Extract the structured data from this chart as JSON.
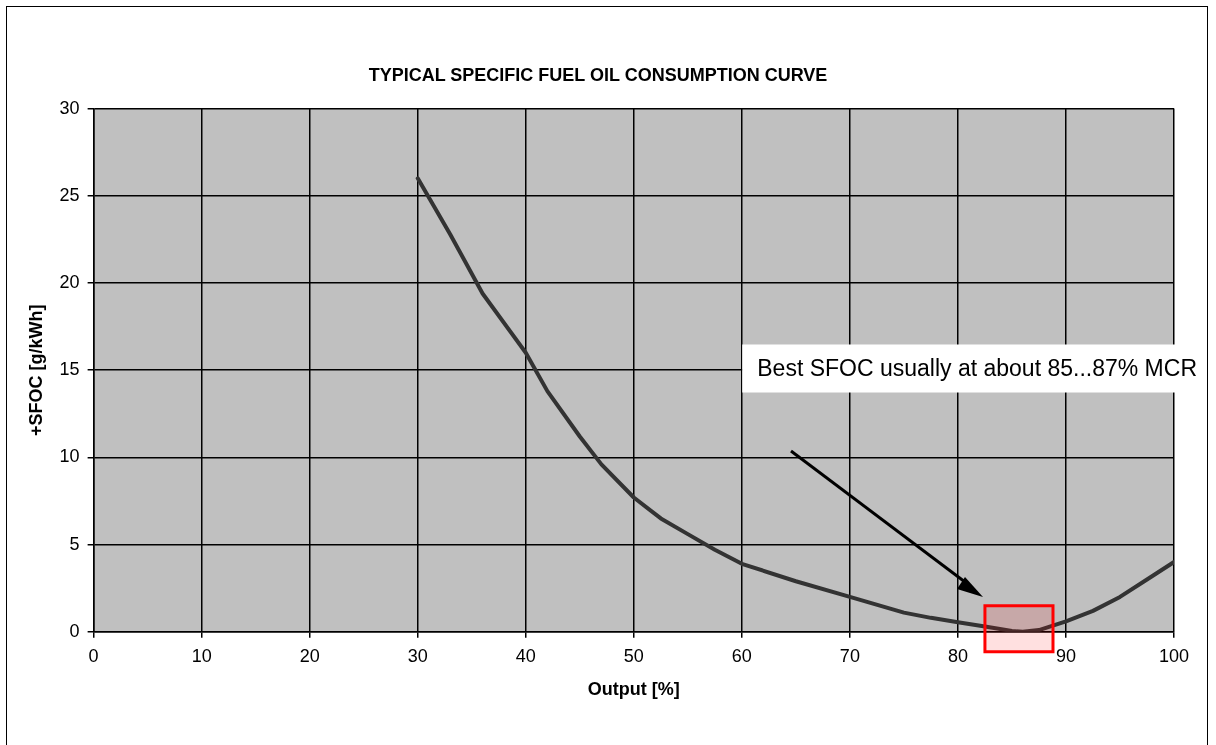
{
  "chart_data": {
    "type": "line",
    "title": "TYPICAL SPECIFIC FUEL OIL CONSUMPTION CURVE",
    "xlabel": "Output [%]",
    "ylabel": "+SFOC [g/kWh]",
    "x": [
      30,
      33,
      36,
      40,
      42,
      45,
      47,
      50,
      52.5,
      55,
      57.5,
      60,
      65,
      70,
      75,
      77.5,
      80,
      82.5,
      85,
      86,
      87.5,
      90,
      92.5,
      95,
      97.5,
      100
    ],
    "series": [
      {
        "color": "#333333",
        "values": [
          26,
          22.8,
          19.4,
          16,
          13.8,
          11.2,
          9.6,
          7.7,
          6.5,
          5.6,
          4.7,
          3.9,
          2.9,
          2.0,
          1.1,
          0.8,
          0.55,
          0.3,
          0.05,
          0,
          0.1,
          0.6,
          1.2,
          2.0,
          3.0,
          4.0
        ]
      }
    ],
    "xlim": [
      0,
      100
    ],
    "xticks": [
      0,
      10,
      20,
      30,
      40,
      50,
      60,
      70,
      80,
      90,
      100
    ],
    "ylim": [
      0,
      30
    ],
    "yticks": [
      0,
      5,
      10,
      15,
      20,
      25,
      30
    ],
    "bands": [
      {
        "axis": "x",
        "from": 82.5,
        "to": 88.8,
        "color": "#ff0000"
      }
    ],
    "grid": true,
    "legend": false,
    "marker": "none",
    "line_style": "solid",
    "annotations": [
      "Best SFOC usually at about 85...87% MCR"
    ]
  }
}
